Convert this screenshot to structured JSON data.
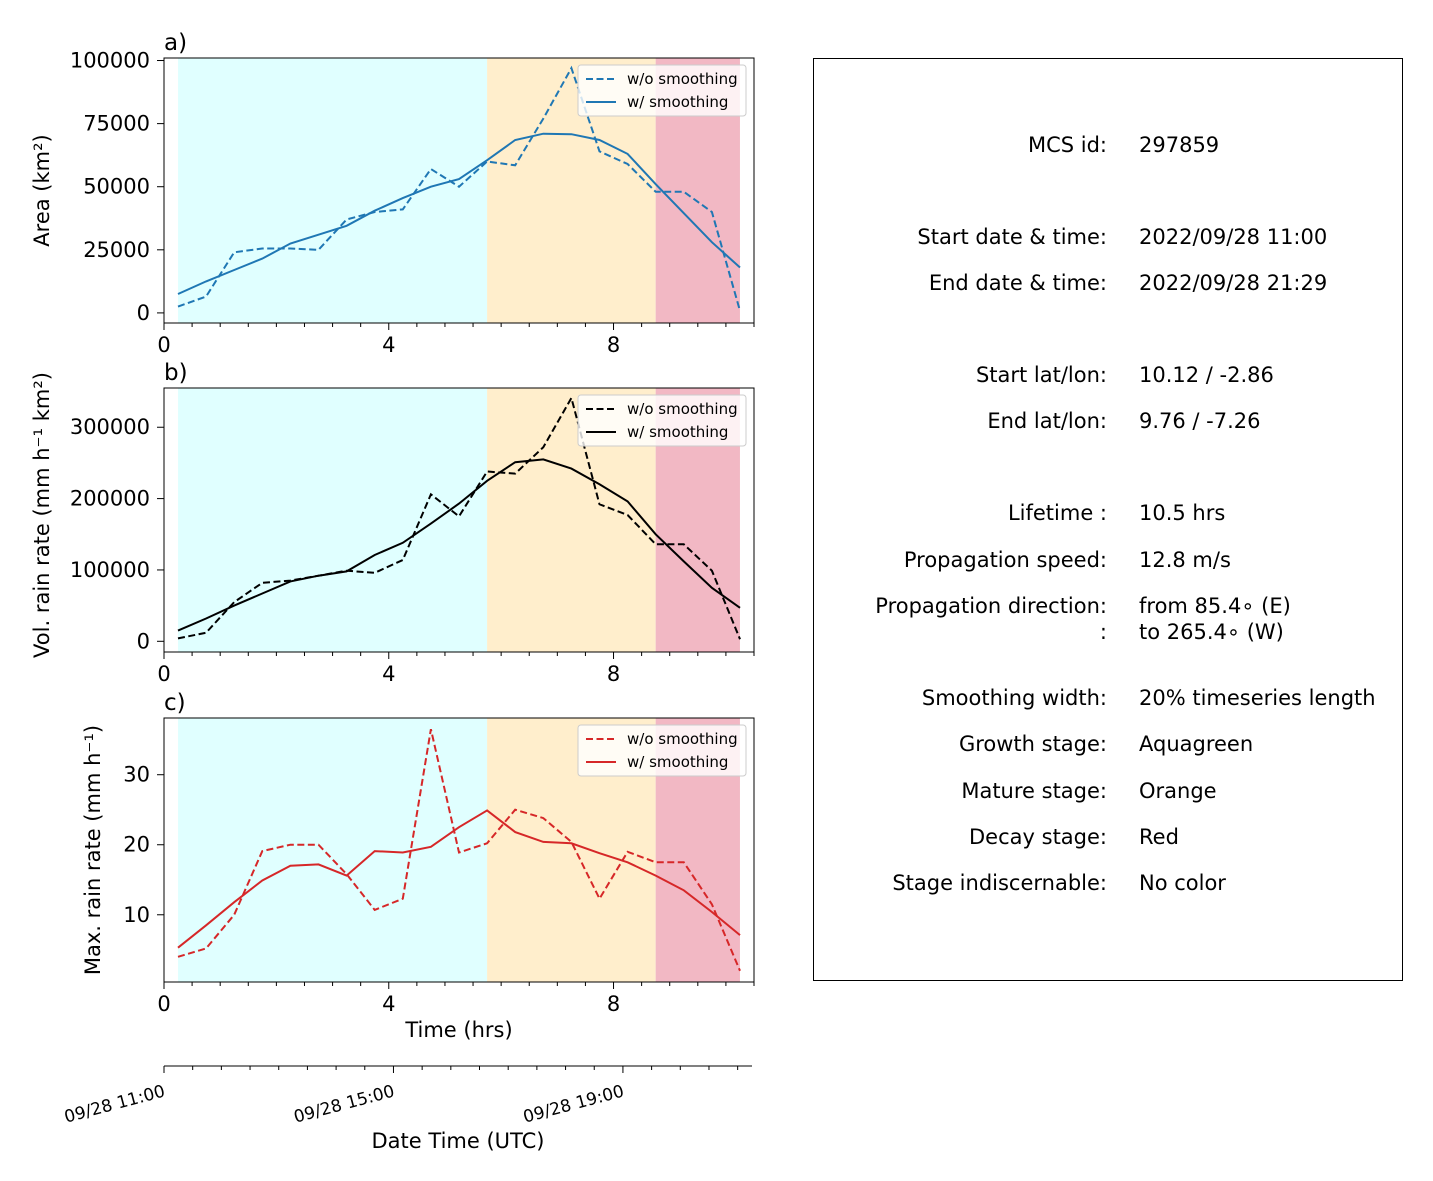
{
  "chart_data": [
    {
      "type": "line",
      "panel_label": "a)",
      "ylabel": "Area  (km²)",
      "xlim": [
        0,
        10.5
      ],
      "ylim": [
        -4000,
        101000
      ],
      "x_ticks": [
        "0",
        "4",
        "8"
      ],
      "y_ticks": [
        "0",
        "25000",
        "50000",
        "75000",
        "100000"
      ],
      "stage_spans": [
        {
          "stage": "growth",
          "x0": 0.25,
          "x1": 5.75,
          "color": "#e0ffff"
        },
        {
          "stage": "mature",
          "x0": 5.75,
          "x1": 8.75,
          "color": "#ffeecc"
        },
        {
          "stage": "decay",
          "x0": 8.75,
          "x1": 10.25,
          "color": "#f2b8c4"
        }
      ],
      "x": [
        0.25,
        0.75,
        1.25,
        1.75,
        2.25,
        2.75,
        3.25,
        3.75,
        4.25,
        4.75,
        5.25,
        5.75,
        6.25,
        6.75,
        7.25,
        7.75,
        8.25,
        8.75,
        9.25,
        9.75,
        10.25
      ],
      "series": [
        {
          "name": "w/o smoothing",
          "style": "dashed",
          "color": "#1f77b4",
          "values": [
            2500,
            6500,
            24000,
            25500,
            25500,
            25000,
            37000,
            40000,
            41000,
            57000,
            50000,
            60000,
            58500,
            77000,
            97000,
            64000,
            59000,
            48000,
            48000,
            40000,
            800
          ]
        },
        {
          "name": "w/ smoothing",
          "style": "solid",
          "color": "#1f77b4",
          "values": [
            7500,
            12500,
            17000,
            21500,
            27500,
            31000,
            34500,
            40500,
            45500,
            50000,
            53000,
            60500,
            68500,
            71000,
            70800,
            68500,
            63000,
            51000,
            39500,
            28000,
            18000
          ]
        }
      ],
      "legend": "top-right"
    },
    {
      "type": "line",
      "panel_label": "b)",
      "ylabel": "Vol. rain rate (mm h⁻¹ km²)",
      "xlim": [
        0,
        10.5
      ],
      "ylim": [
        -15000,
        355000
      ],
      "x_ticks": [
        "0",
        "4",
        "8"
      ],
      "y_ticks": [
        "0",
        "100000",
        "200000",
        "300000"
      ],
      "stage_spans": [
        {
          "stage": "growth",
          "x0": 0.25,
          "x1": 5.75,
          "color": "#e0ffff"
        },
        {
          "stage": "mature",
          "x0": 5.75,
          "x1": 8.75,
          "color": "#ffeecc"
        },
        {
          "stage": "decay",
          "x0": 8.75,
          "x1": 10.25,
          "color": "#f2b8c4"
        }
      ],
      "x": [
        0.25,
        0.75,
        1.25,
        1.75,
        2.25,
        2.75,
        3.25,
        3.75,
        4.25,
        4.75,
        5.25,
        5.75,
        6.25,
        6.75,
        7.25,
        7.75,
        8.25,
        8.75,
        9.25,
        9.75,
        10.25
      ],
      "series": [
        {
          "name": "w/o smoothing",
          "style": "dashed",
          "color": "#000000",
          "values": [
            4000,
            12000,
            55000,
            82000,
            85000,
            92000,
            99000,
            96000,
            114000,
            206000,
            175000,
            238000,
            235000,
            272000,
            341000,
            192000,
            177000,
            136000,
            136000,
            99000,
            3000
          ]
        },
        {
          "name": "w/ smoothing",
          "style": "solid",
          "color": "#000000",
          "values": [
            15000,
            32000,
            50000,
            67000,
            84000,
            92000,
            98000,
            121000,
            138000,
            165000,
            193000,
            225000,
            251000,
            255000,
            242000,
            220000,
            196000,
            150000,
            112000,
            75000,
            47000
          ]
        }
      ],
      "legend": "top-right"
    },
    {
      "type": "line",
      "panel_label": "c)",
      "ylabel": "Max. rain rate  (mm h⁻¹)",
      "xlabel": "Time (hrs)",
      "xlim": [
        0,
        10.5
      ],
      "ylim": [
        0.4,
        38.1
      ],
      "x_ticks": [
        "0",
        "4",
        "8"
      ],
      "y_ticks": [
        "10",
        "20",
        "30"
      ],
      "stage_spans": [
        {
          "stage": "growth",
          "x0": 0.25,
          "x1": 5.75,
          "color": "#e0ffff"
        },
        {
          "stage": "mature",
          "x0": 5.75,
          "x1": 8.75,
          "color": "#ffeecc"
        },
        {
          "stage": "decay",
          "x0": 8.75,
          "x1": 10.25,
          "color": "#f2b8c4"
        }
      ],
      "x": [
        0.25,
        0.75,
        1.25,
        1.75,
        2.25,
        2.75,
        3.25,
        3.75,
        4.25,
        4.75,
        5.25,
        5.75,
        6.25,
        6.75,
        7.25,
        7.75,
        8.25,
        8.75,
        9.25,
        9.75,
        10.25
      ],
      "series": [
        {
          "name": "w/o smoothing",
          "style": "dashed",
          "color": "#d62728",
          "values": [
            4.0,
            5.2,
            10.0,
            19.1,
            20.0,
            20.0,
            15.8,
            10.7,
            12.3,
            36.5,
            18.9,
            20.2,
            25.0,
            23.8,
            20.4,
            12.3,
            19.0,
            17.5,
            17.5,
            11.5,
            2.0
          ]
        },
        {
          "name": "w/ smoothing",
          "style": "solid",
          "color": "#d62728",
          "values": [
            5.3,
            8.5,
            11.8,
            14.9,
            17.0,
            17.2,
            15.6,
            19.1,
            18.9,
            19.7,
            22.5,
            24.9,
            21.8,
            20.4,
            20.2,
            18.8,
            17.5,
            15.6,
            13.5,
            10.4,
            7.1
          ]
        }
      ],
      "legend": "top-right"
    }
  ],
  "date_axis": {
    "xlabel": "Date Time (UTC)",
    "tick_labels": [
      "09/28 11:00",
      "09/28 15:00",
      "09/28 19:00"
    ],
    "tick_hours": [
      0,
      4,
      8
    ]
  },
  "info": {
    "rows": [
      {
        "label": "MCS id:",
        "value": "297859"
      },
      {
        "label": "Start date & time:",
        "value": "2022/09/28 11:00"
      },
      {
        "label": "End date & time:",
        "value": "2022/09/28 21:29"
      },
      {
        "label": "Start lat/lon:",
        "value": "10.12 / -2.86"
      },
      {
        "label": "End lat/lon:",
        "value": "9.76 / -7.26"
      },
      {
        "label": "Lifetime :",
        "value": "10.5 hrs"
      },
      {
        "label": "Propagation speed:",
        "value": "12.8 m/s"
      },
      {
        "label": "Propagation direction:",
        "value": "from  85.4∘ (E)"
      },
      {
        "label": ":",
        "value": "to   265.4∘ (W)"
      },
      {
        "label": "Smoothing width:",
        "value": "20% timeseries length"
      },
      {
        "label": "Growth stage:",
        "value": "Aquagreen"
      },
      {
        "label": "Mature stage:",
        "value": "Orange"
      },
      {
        "label": "Decay stage:",
        "value": "Red"
      },
      {
        "label": "Stage indiscernable:",
        "value": "No color"
      }
    ]
  }
}
